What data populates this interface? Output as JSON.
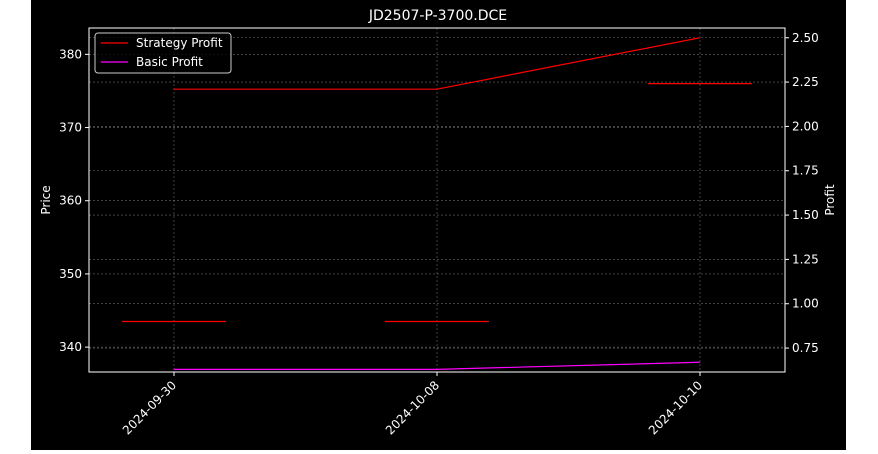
{
  "chart_data": {
    "type": "line",
    "title": "JD2507-P-3700.DCE",
    "xlabel": "",
    "ylabel": "Price",
    "y2label": "Profit",
    "categories": [
      "2024-09-30",
      "2024-10-08",
      "2024-10-10"
    ],
    "ylim": [
      336.6,
      383.6
    ],
    "y2lim": [
      0.615,
      2.555
    ],
    "yticks": [
      340,
      350,
      360,
      370,
      380
    ],
    "y2ticks": [
      "0.75",
      "1.00",
      "1.25",
      "1.50",
      "1.75",
      "2.00",
      "2.25",
      "2.50"
    ],
    "price_series": {
      "values": [
        343.5,
        343.5,
        376.0
      ],
      "color": "#ff0000",
      "marker": "horizontal-dash"
    },
    "series": [
      {
        "name": "Strategy Profit",
        "axis": "right",
        "color": "#ff0000",
        "values": [
          2.21,
          2.21,
          2.5
        ]
      },
      {
        "name": "Basic Profit",
        "axis": "right",
        "color": "#ff00ff",
        "values": [
          0.63,
          0.63,
          0.67
        ]
      }
    ],
    "grid": true,
    "legend_position": "top-left",
    "background": "#000000"
  }
}
